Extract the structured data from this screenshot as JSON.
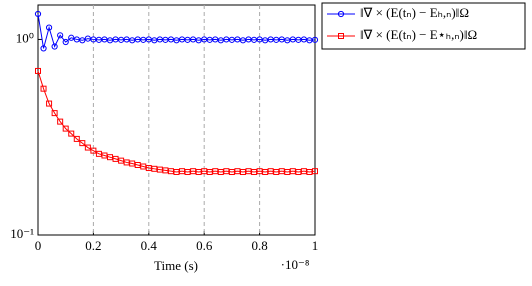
{
  "chart_data": {
    "type": "line",
    "x_label": "Time (s)",
    "x_multiplier": "·10⁻⁸",
    "x": [
      0,
      0.02,
      0.04,
      0.06,
      0.08,
      0.1,
      0.12,
      0.14,
      0.16,
      0.18,
      0.2,
      0.22,
      0.24,
      0.26,
      0.28,
      0.3,
      0.32,
      0.34,
      0.36,
      0.38,
      0.4,
      0.42,
      0.44,
      0.46,
      0.48,
      0.5,
      0.52,
      0.54,
      0.56,
      0.58,
      0.6,
      0.62,
      0.64,
      0.66,
      0.68,
      0.7,
      0.72,
      0.74,
      0.76,
      0.78,
      0.8,
      0.82,
      0.84,
      0.86,
      0.88,
      0.9,
      0.92,
      0.94,
      0.96,
      0.98,
      1
    ],
    "series": [
      {
        "name": "‖∇ × (E(tₙ) − Eₕ,ₙ)‖Ω",
        "color": "#0000ff",
        "marker": "circle",
        "values": [
          1.35,
          0.9,
          1.15,
          0.92,
          1.05,
          0.97,
          1.02,
          1.0,
          0.99,
          1.01,
          1.0,
          0.995,
          1.0,
          0.99,
          1.0,
          0.995,
          1.0,
          0.99,
          1.0,
          0.995,
          1.0,
          0.99,
          1.0,
          0.995,
          1.0,
          0.99,
          1.0,
          0.995,
          1.0,
          0.99,
          1.0,
          0.995,
          1.0,
          0.99,
          1.0,
          0.995,
          1.0,
          0.99,
          1.0,
          0.995,
          1.0,
          0.99,
          1.0,
          0.995,
          1.0,
          0.99,
          1.0,
          0.995,
          1.0,
          0.99,
          0.995
        ]
      },
      {
        "name": "‖∇ × (E(tₙ) − E⋆ₕ,ₙ)‖Ω",
        "color": "#ff0000",
        "marker": "square",
        "values": [
          0.69,
          0.56,
          0.47,
          0.42,
          0.38,
          0.35,
          0.33,
          0.31,
          0.295,
          0.28,
          0.27,
          0.26,
          0.255,
          0.25,
          0.245,
          0.24,
          0.235,
          0.232,
          0.228,
          0.224,
          0.22,
          0.218,
          0.216,
          0.214,
          0.212,
          0.21,
          0.212,
          0.21,
          0.212,
          0.21,
          0.212,
          0.21,
          0.212,
          0.21,
          0.212,
          0.21,
          0.212,
          0.21,
          0.212,
          0.21,
          0.212,
          0.21,
          0.212,
          0.21,
          0.212,
          0.21,
          0.212,
          0.21,
          0.212,
          0.21,
          0.212
        ]
      }
    ],
    "xlim": [
      0,
      1
    ],
    "xticks": [
      0,
      0.2,
      0.4,
      0.6,
      0.8,
      1
    ],
    "ylim": [
      0.1,
      1.5
    ],
    "yticks": [
      {
        "value": 0.1,
        "label": "10⁻¹"
      },
      {
        "value": 1,
        "label": "10⁰"
      }
    ],
    "log_y": true,
    "grid": true,
    "legend": "outside-right"
  }
}
